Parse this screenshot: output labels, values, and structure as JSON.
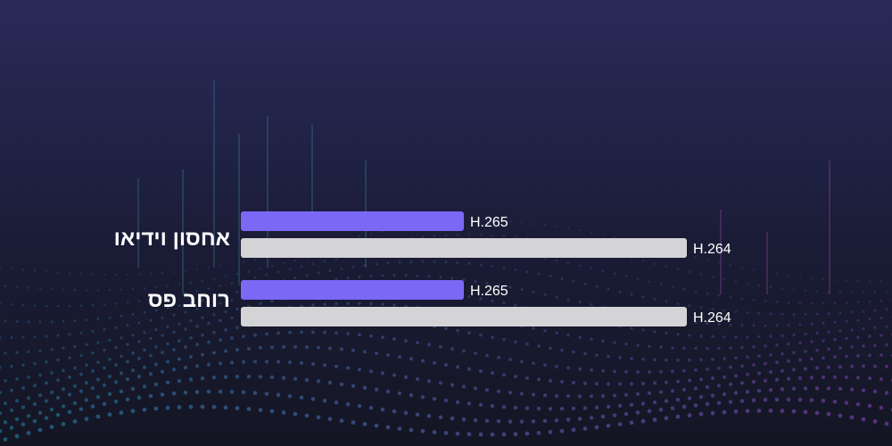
{
  "chart_data": {
    "type": "bar",
    "orientation": "horizontal",
    "categories": [
      "אחסון וידיאו",
      "רוחב פס"
    ],
    "series": [
      {
        "name": "H.265",
        "color": "#7b68f5",
        "values": [
          50,
          50
        ]
      },
      {
        "name": "H.264",
        "color": "#d4d4d6",
        "values": [
          100,
          100
        ]
      }
    ],
    "xlim": [
      0,
      100
    ],
    "grid": false,
    "axes_visible": false
  },
  "colors": {
    "background_top": "#2a2a58",
    "background_bottom": "#141624",
    "accent": "#7b68f5",
    "bar_secondary": "#d4d4d6",
    "text": "#ffffff"
  }
}
